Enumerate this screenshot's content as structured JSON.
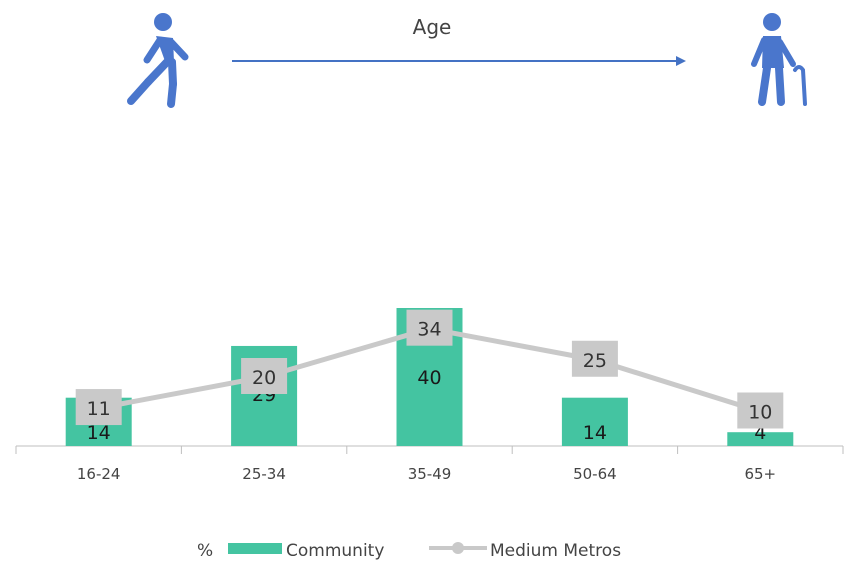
{
  "header": {
    "label": "Age",
    "left_icon": "walking-person-icon",
    "right_icon": "elderly-person-with-cane-icon",
    "arrow_color": "#4472c4",
    "icon_color": "#4a76cc"
  },
  "chart_data": {
    "type": "bar",
    "categories": [
      "16-24",
      "25-34",
      "35-49",
      "50-64",
      "65+"
    ],
    "series": [
      {
        "name": "Community",
        "type": "bar",
        "color": "#44c4a1",
        "values": [
          14,
          29,
          40,
          14,
          4
        ]
      },
      {
        "name": "Medium Metros",
        "type": "line",
        "color": "#c9c9c9",
        "values": [
          11,
          20,
          34,
          25,
          10
        ]
      }
    ],
    "ylim": [
      0,
      40
    ],
    "grid": false,
    "legend": {
      "placement": "bottom",
      "prefix": "%"
    }
  }
}
